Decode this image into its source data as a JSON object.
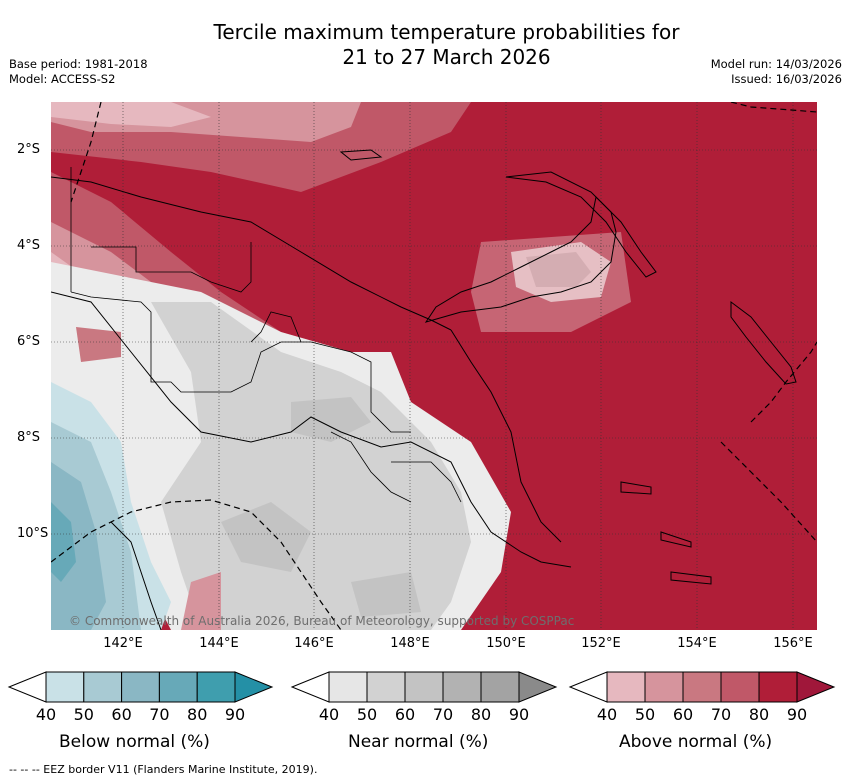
{
  "header": {
    "title_line1": "Tercile maximum temperature probabilities for",
    "title_line2": "21 to 27 March 2026",
    "base_period": "Base period: 1981-2018",
    "model": "Model: ACCESS-S2",
    "model_run": "Model run: 14/03/2026",
    "issued": "Issued: 16/03/2026"
  },
  "map": {
    "lon_ticks": [
      "142°E",
      "144°E",
      "146°E",
      "148°E",
      "150°E",
      "152°E",
      "154°E",
      "156°E"
    ],
    "lat_ticks": [
      "2°S",
      "4°S",
      "6°S",
      "8°S",
      "10°S"
    ],
    "copyright": "© Commonwealth of Australia 2026, Bureau of Meteorology, supported by COSPPac"
  },
  "legend": {
    "below": {
      "label": "Below normal (%)",
      "ticks": [
        "40",
        "50",
        "60",
        "70",
        "80",
        "90"
      ],
      "colors": [
        "#ffffff",
        "#c9e1e7",
        "#a8cad3",
        "#8ab7c4",
        "#67a9b8",
        "#3f9eae",
        "#2490a6"
      ]
    },
    "near": {
      "label": "Near normal (%)",
      "ticks": [
        "40",
        "50",
        "60",
        "70",
        "80",
        "90"
      ],
      "colors": [
        "#ffffff",
        "#e6e6e6",
        "#d2d2d2",
        "#c3c3c3",
        "#b2b2b2",
        "#a3a3a3",
        "#8a8a8a"
      ]
    },
    "above": {
      "label": "Above normal (%)",
      "ticks": [
        "40",
        "50",
        "60",
        "70",
        "80",
        "90"
      ],
      "colors": [
        "#ffffff",
        "#e6b8bf",
        "#d6949d",
        "#c97881",
        "#c05868",
        "#b01e38",
        "#a0173a"
      ]
    }
  },
  "footer": {
    "eez_note": "-- -- -- EEZ border V11 (Flanders Marine Institute, 2019)."
  }
}
